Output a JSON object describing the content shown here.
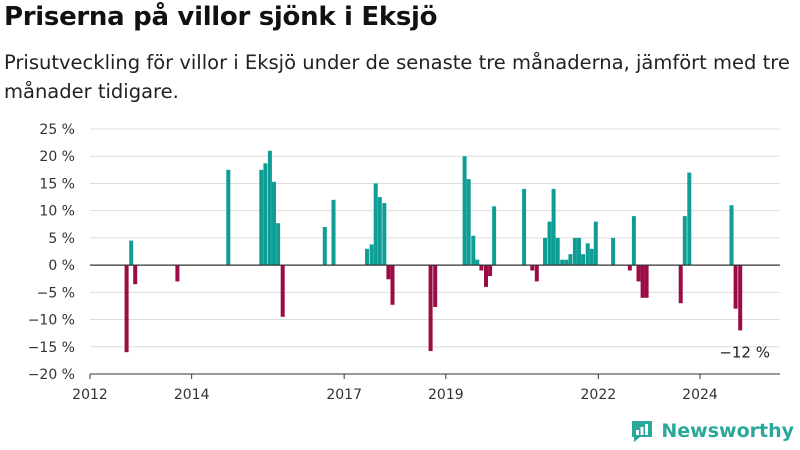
{
  "header": {
    "title": "Priserna på villor sjönk i Eksjö",
    "subtitle": "Prisutveckling för villor i Eksjö under de senaste tre månaderna, jämfört med tre månader tidigare."
  },
  "brand": {
    "name": "Newsworthy",
    "icon": "newsworthy-logo-icon",
    "color": "#2aa89a"
  },
  "colors": {
    "positive": "#0f9e96",
    "negative": "#9b0b46",
    "grid": "#dddddd",
    "zero": "#333333"
  },
  "chart_data": {
    "type": "bar",
    "ylim": [
      -20,
      25
    ],
    "xlim": [
      2012.0,
      2025.6
    ],
    "y_ticks": [
      25,
      20,
      15,
      10,
      5,
      0,
      -5,
      -10,
      -15,
      -20
    ],
    "y_tick_labels": [
      "25 %",
      "20 %",
      "15 %",
      "10 %",
      "5 %",
      "0 %",
      "−5 %",
      "−10 %",
      "−15 %",
      "−20 %"
    ],
    "x_ticks": [
      2012,
      2014,
      2017,
      2019,
      2022,
      2024
    ],
    "x_tick_labels": [
      "2012",
      "2014",
      "2017",
      "2019",
      "2022",
      "2024"
    ],
    "grid": true,
    "annotation": {
      "text": "−12 %",
      "x": 2024.75,
      "y": -12
    },
    "points": [
      {
        "x": 2012.72,
        "y": -16
      },
      {
        "x": 2012.81,
        "y": 4.5
      },
      {
        "x": 2012.89,
        "y": -3.5
      },
      {
        "x": 2013.72,
        "y": -3
      },
      {
        "x": 2014.72,
        "y": 17.5
      },
      {
        "x": 2015.37,
        "y": 17.5
      },
      {
        "x": 2015.45,
        "y": 18.7
      },
      {
        "x": 2015.54,
        "y": 21
      },
      {
        "x": 2015.62,
        "y": 15.3
      },
      {
        "x": 2015.7,
        "y": 7.7
      },
      {
        "x": 2015.79,
        "y": -9.5
      },
      {
        "x": 2016.62,
        "y": 7
      },
      {
        "x": 2016.79,
        "y": 12
      },
      {
        "x": 2017.45,
        "y": 3
      },
      {
        "x": 2017.54,
        "y": 3.8
      },
      {
        "x": 2017.62,
        "y": 15
      },
      {
        "x": 2017.7,
        "y": 12.5
      },
      {
        "x": 2017.79,
        "y": 11.4
      },
      {
        "x": 2017.87,
        "y": -2.6
      },
      {
        "x": 2017.95,
        "y": -7.3
      },
      {
        "x": 2018.7,
        "y": -15.8
      },
      {
        "x": 2018.79,
        "y": -7.7
      },
      {
        "x": 2019.37,
        "y": 20
      },
      {
        "x": 2019.45,
        "y": 15.8
      },
      {
        "x": 2019.54,
        "y": 5.4
      },
      {
        "x": 2019.62,
        "y": 1
      },
      {
        "x": 2019.7,
        "y": -1
      },
      {
        "x": 2019.79,
        "y": -4
      },
      {
        "x": 2019.87,
        "y": -2
      },
      {
        "x": 2019.95,
        "y": 10.8
      },
      {
        "x": 2020.54,
        "y": 14
      },
      {
        "x": 2020.7,
        "y": -1
      },
      {
        "x": 2020.79,
        "y": -3
      },
      {
        "x": 2020.95,
        "y": 5
      },
      {
        "x": 2021.04,
        "y": 8
      },
      {
        "x": 2021.12,
        "y": 14
      },
      {
        "x": 2021.2,
        "y": 5
      },
      {
        "x": 2021.29,
        "y": 1
      },
      {
        "x": 2021.37,
        "y": 1
      },
      {
        "x": 2021.45,
        "y": 2
      },
      {
        "x": 2021.54,
        "y": 5
      },
      {
        "x": 2021.62,
        "y": 5
      },
      {
        "x": 2021.7,
        "y": 2
      },
      {
        "x": 2021.79,
        "y": 4
      },
      {
        "x": 2021.87,
        "y": 3
      },
      {
        "x": 2021.95,
        "y": 8
      },
      {
        "x": 2022.29,
        "y": 5
      },
      {
        "x": 2022.62,
        "y": -1
      },
      {
        "x": 2022.7,
        "y": 9
      },
      {
        "x": 2022.79,
        "y": -3
      },
      {
        "x": 2022.87,
        "y": -6
      },
      {
        "x": 2022.95,
        "y": -6
      },
      {
        "x": 2023.62,
        "y": -7
      },
      {
        "x": 2023.7,
        "y": 9
      },
      {
        "x": 2023.79,
        "y": 17
      },
      {
        "x": 2024.62,
        "y": 11
      },
      {
        "x": 2024.7,
        "y": -8
      },
      {
        "x": 2024.79,
        "y": -12
      }
    ]
  }
}
